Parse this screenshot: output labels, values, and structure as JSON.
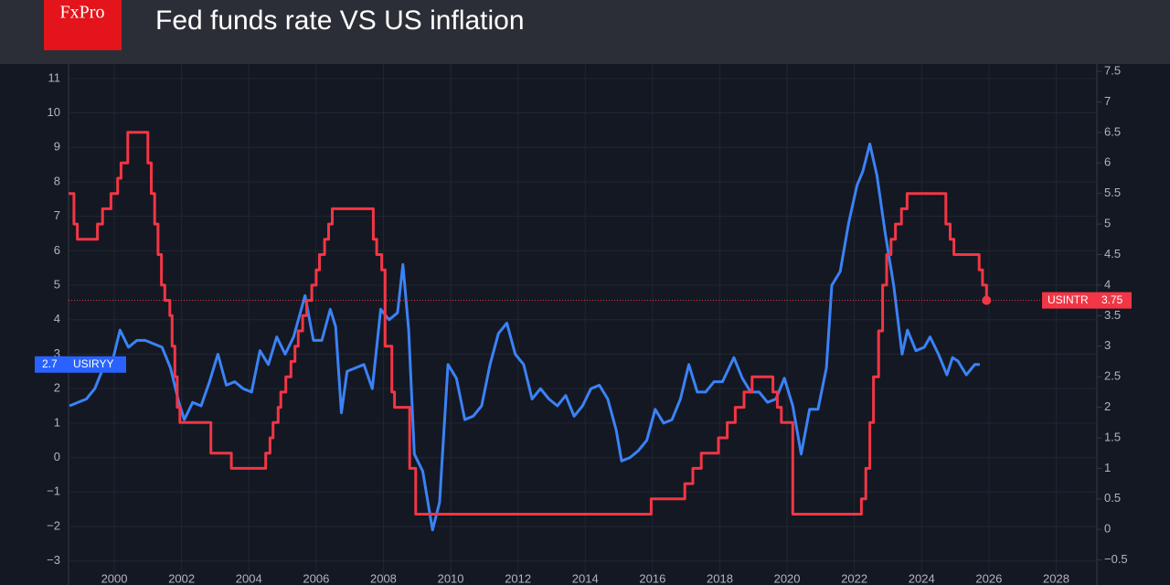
{
  "chart_data": {
    "type": "line",
    "title": "Fed funds rate VS US inflation",
    "brand": "FxPro",
    "xlim": [
      1998.64,
      2029.21
    ],
    "xticks": [
      2000,
      2002,
      2004,
      2006,
      2008,
      2010,
      2012,
      2014,
      2016,
      2018,
      2020,
      2022,
      2024,
      2026,
      2028
    ],
    "ylim": [
      -3.38,
      11.42
    ],
    "yticks": [
      {
        "value": -3,
        "label": "−3"
      },
      {
        "value": -2,
        "label": "−2"
      },
      {
        "value": -1,
        "label": "−1"
      },
      0,
      1,
      2,
      3,
      4,
      5,
      6,
      7,
      8,
      9,
      10,
      11
    ],
    "y2lim": [
      -0.73,
      7.62
    ],
    "y2ticks": [
      {
        "value": -0.5,
        "label": "−0.5"
      },
      0,
      0.5,
      1,
      1.5,
      2,
      2.5,
      3,
      3.5,
      4,
      4.5,
      5,
      5.5,
      6,
      6.5,
      7,
      7.5
    ],
    "grid": true,
    "series": [
      {
        "name": "USIRYY",
        "color": "#3b82f6",
        "axis": "y",
        "x": [
          1998.67,
          1998.92,
          1999.17,
          1999.42,
          1999.67,
          1999.92,
          2000.17,
          2000.42,
          2000.67,
          2000.92,
          2001.17,
          2001.42,
          2001.67,
          2001.92,
          2002.08,
          2002.33,
          2002.58,
          2002.83,
          2003.08,
          2003.33,
          2003.58,
          2003.83,
          2004.08,
          2004.33,
          2004.58,
          2004.83,
          2005.08,
          2005.33,
          2005.67,
          2005.92,
          2006.17,
          2006.42,
          2006.58,
          2006.75,
          2006.92,
          2007.17,
          2007.42,
          2007.67,
          2007.92,
          2008.17,
          2008.42,
          2008.58,
          2008.75,
          2008.92,
          2009.17,
          2009.46,
          2009.67,
          2009.92,
          2010.17,
          2010.42,
          2010.67,
          2010.92,
          2011.17,
          2011.42,
          2011.67,
          2011.92,
          2012.17,
          2012.42,
          2012.67,
          2012.92,
          2013.17,
          2013.42,
          2013.67,
          2013.92,
          2014.17,
          2014.42,
          2014.67,
          2014.92,
          2015.08,
          2015.33,
          2015.58,
          2015.83,
          2016.08,
          2016.33,
          2016.58,
          2016.83,
          2017.08,
          2017.33,
          2017.58,
          2017.83,
          2018.08,
          2018.42,
          2018.67,
          2018.92,
          2019.17,
          2019.42,
          2019.67,
          2019.92,
          2020.17,
          2020.42,
          2020.67,
          2020.92,
          2021.17,
          2021.33,
          2021.58,
          2021.83,
          2022.08,
          2022.25,
          2022.46,
          2022.67,
          2022.92,
          2023.17,
          2023.42,
          2023.58,
          2023.83,
          2024.08,
          2024.25,
          2024.5,
          2024.75,
          2024.92,
          2025.08,
          2025.33,
          2025.58,
          2025.73
        ],
        "values": [
          1.5,
          1.6,
          1.7,
          2.0,
          2.6,
          2.7,
          3.7,
          3.2,
          3.4,
          3.4,
          3.3,
          3.2,
          2.6,
          1.6,
          1.1,
          1.6,
          1.5,
          2.2,
          3.0,
          2.1,
          2.2,
          2.0,
          1.9,
          3.1,
          2.7,
          3.5,
          3.0,
          3.5,
          4.7,
          3.4,
          3.4,
          4.3,
          3.8,
          1.3,
          2.5,
          2.6,
          2.7,
          2.0,
          4.3,
          4.0,
          4.2,
          5.6,
          3.7,
          0.1,
          -0.4,
          -2.1,
          -1.3,
          2.7,
          2.3,
          1.1,
          1.2,
          1.5,
          2.7,
          3.6,
          3.9,
          3.0,
          2.7,
          1.7,
          2.0,
          1.7,
          1.5,
          1.8,
          1.2,
          1.5,
          2.0,
          2.1,
          1.7,
          0.8,
          -0.1,
          0.0,
          0.2,
          0.5,
          1.4,
          1.0,
          1.1,
          1.7,
          2.7,
          1.9,
          1.9,
          2.2,
          2.2,
          2.9,
          2.3,
          1.9,
          1.9,
          1.6,
          1.7,
          2.3,
          1.5,
          0.1,
          1.4,
          1.4,
          2.6,
          5.0,
          5.4,
          6.8,
          7.9,
          8.3,
          9.1,
          8.2,
          6.5,
          5.0,
          3.0,
          3.7,
          3.1,
          3.2,
          3.5,
          3.0,
          2.4,
          2.9,
          2.8,
          2.4,
          2.7,
          2.7
        ]
      },
      {
        "name": "USINTR",
        "color": "#f23645",
        "axis": "y2",
        "step": true,
        "x": [
          1998.64,
          1998.8,
          1998.9,
          1999.5,
          1999.65,
          1999.9,
          2000.1,
          2000.2,
          2000.4,
          2001.0,
          2001.1,
          2001.2,
          2001.3,
          2001.4,
          2001.5,
          2001.65,
          2001.72,
          2001.8,
          2001.87,
          2001.95,
          2002.87,
          2003.48,
          2004.5,
          2004.63,
          2004.72,
          2004.87,
          2004.95,
          2005.1,
          2005.25,
          2005.37,
          2005.47,
          2005.6,
          2005.72,
          2005.87,
          2006.0,
          2006.1,
          2006.25,
          2006.37,
          2006.48,
          2007.7,
          2007.8,
          2007.95,
          2008.05,
          2008.25,
          2008.33,
          2008.78,
          2008.96,
          2015.96,
          2016.96,
          2017.2,
          2017.45,
          2017.96,
          2018.22,
          2018.46,
          2018.72,
          2018.96,
          2019.58,
          2019.71,
          2019.83,
          2020.17,
          2022.21,
          2022.34,
          2022.46,
          2022.57,
          2022.72,
          2022.84,
          2022.96,
          2023.09,
          2023.22,
          2023.4,
          2023.57,
          2024.72,
          2024.85,
          2024.96,
          2025.71,
          2025.81,
          2025.93
        ],
        "values": [
          5.5,
          5.0,
          4.75,
          5.0,
          5.25,
          5.5,
          5.75,
          6.0,
          6.5,
          6.0,
          5.5,
          5.0,
          4.5,
          4.0,
          3.75,
          3.5,
          3.0,
          2.5,
          2.0,
          1.75,
          1.25,
          1.0,
          1.25,
          1.5,
          1.75,
          2.0,
          2.25,
          2.5,
          2.75,
          3.0,
          3.25,
          3.5,
          3.75,
          4.0,
          4.25,
          4.5,
          4.75,
          5.0,
          5.25,
          4.75,
          4.5,
          4.25,
          3.0,
          2.25,
          2.0,
          1.0,
          0.25,
          0.5,
          0.75,
          1.0,
          1.25,
          1.5,
          1.75,
          2.0,
          2.25,
          2.5,
          2.25,
          2.0,
          1.75,
          0.25,
          0.5,
          1.0,
          1.75,
          2.5,
          3.25,
          4.0,
          4.5,
          4.75,
          5.0,
          5.25,
          5.5,
          5.0,
          4.75,
          4.5,
          4.25,
          4.0,
          3.75
        ]
      }
    ]
  }
}
